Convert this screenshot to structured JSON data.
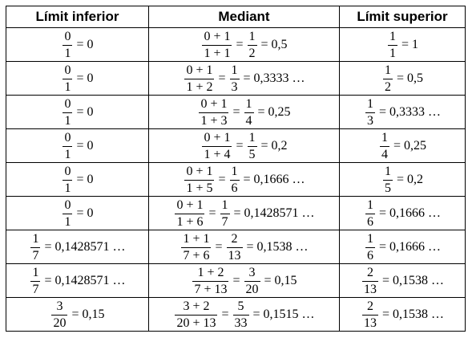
{
  "headers": [
    "Límit inferior",
    "Mediant",
    "Límit superior"
  ],
  "rows": [
    {
      "lower": {
        "num": "0",
        "den": "1",
        "value": "0"
      },
      "mediant": {
        "num": "0 + 1",
        "den": "1 + 1",
        "rnum": "1",
        "rden": "2",
        "value": "0,5"
      },
      "upper": {
        "num": "1",
        "den": "1",
        "value": "1"
      }
    },
    {
      "lower": {
        "num": "0",
        "den": "1",
        "value": "0"
      },
      "mediant": {
        "num": "0 + 1",
        "den": "1 + 2",
        "rnum": "1",
        "rden": "3",
        "value": "0,3333 …"
      },
      "upper": {
        "num": "1",
        "den": "2",
        "value": "0,5"
      }
    },
    {
      "lower": {
        "num": "0",
        "den": "1",
        "value": "0"
      },
      "mediant": {
        "num": "0 + 1",
        "den": "1 + 3",
        "rnum": "1",
        "rden": "4",
        "value": "0,25"
      },
      "upper": {
        "num": "1",
        "den": "3",
        "value": "0,3333 …"
      }
    },
    {
      "lower": {
        "num": "0",
        "den": "1",
        "value": "0"
      },
      "mediant": {
        "num": "0 + 1",
        "den": "1 + 4",
        "rnum": "1",
        "rden": "5",
        "value": "0,2"
      },
      "upper": {
        "num": "1",
        "den": "4",
        "value": "0,25"
      }
    },
    {
      "lower": {
        "num": "0",
        "den": "1",
        "value": "0"
      },
      "mediant": {
        "num": "0 + 1",
        "den": "1 + 5",
        "rnum": "1",
        "rden": "6",
        "value": "0,1666 …"
      },
      "upper": {
        "num": "1",
        "den": "5",
        "value": "0,2"
      }
    },
    {
      "lower": {
        "num": "0",
        "den": "1",
        "value": "0"
      },
      "mediant": {
        "num": "0 + 1",
        "den": "1 + 6",
        "rnum": "1",
        "rden": "7",
        "value": "0,1428571 …"
      },
      "upper": {
        "num": "1",
        "den": "6",
        "value": "0,1666 …"
      }
    },
    {
      "lower": {
        "num": "1",
        "den": "7",
        "value": "0,1428571 …"
      },
      "mediant": {
        "num": "1 + 1",
        "den": "7 + 6",
        "rnum": "2",
        "rden": "13",
        "value": "0,1538 …"
      },
      "upper": {
        "num": "1",
        "den": "6",
        "value": "0,1666 …"
      }
    },
    {
      "lower": {
        "num": "1",
        "den": "7",
        "value": "0,1428571 …"
      },
      "mediant": {
        "num": "1 + 2",
        "den": "7 + 13",
        "rnum": "3",
        "rden": "20",
        "value": "0,15"
      },
      "upper": {
        "num": "2",
        "den": "13",
        "value": "0,1538 …"
      }
    },
    {
      "lower": {
        "num": "3",
        "den": "20",
        "value": "0,15"
      },
      "mediant": {
        "num": "3 + 2",
        "den": "20 + 13",
        "rnum": "5",
        "rden": "33",
        "value": "0,1515 …"
      },
      "upper": {
        "num": "2",
        "den": "13",
        "value": "0,1538 …"
      }
    }
  ]
}
